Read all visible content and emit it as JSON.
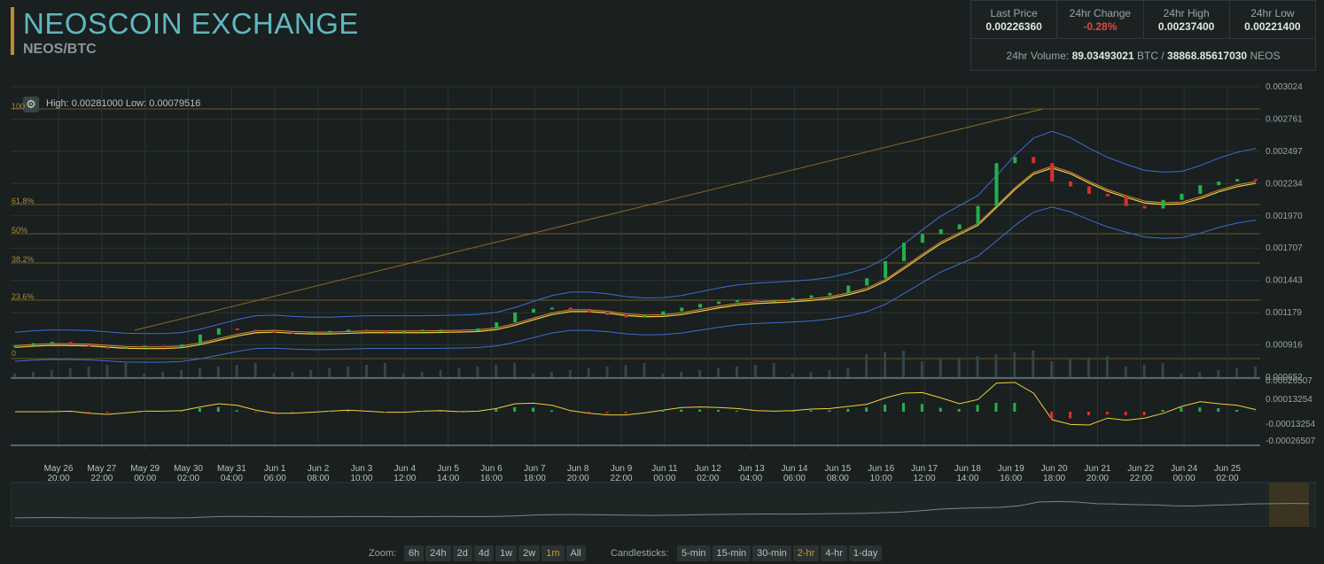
{
  "header": {
    "title": "NEOSCOIN EXCHANGE",
    "pair": "NEOS/BTC"
  },
  "stats": {
    "last_price_label": "Last Price",
    "last_price": "0.00226360",
    "change_label": "24hr Change",
    "change": "-0.28%",
    "high_label": "24hr High",
    "high": "0.00237400",
    "low_label": "24hr Low",
    "low": "0.00221400",
    "volume_label": "24hr Volume:",
    "volume_btc": "89.03493021",
    "volume_btc_unit": "BTC /",
    "volume_neos": "38868.85617030",
    "volume_neos_unit": "NEOS"
  },
  "chart": {
    "high_low_text": "High: 0.00281000   Low: 0.00079516",
    "fib_labels": [
      "100",
      "61.8%",
      "50%",
      "38.2%",
      "23.6%",
      "0"
    ],
    "colors": {
      "up": "#22b14c",
      "down": "#d9302c",
      "bands": "#3b6fd1",
      "ma": "#f0d23a",
      "ma2": "#d88a3a",
      "grid": "#2b3434"
    }
  },
  "chart_data": {
    "type": "line",
    "price_axis_ticks": [
      "0.003024",
      "0.002761",
      "0.002497",
      "0.002234",
      "0.001970",
      "0.001707",
      "0.001443",
      "0.001179",
      "0.000916",
      "0.000652"
    ],
    "macd_axis_ticks": [
      "0.00026507",
      "0.00013254",
      "-0.00013254",
      "-0.00026507"
    ],
    "x_labels": [
      [
        "May 26",
        "20:00"
      ],
      [
        "May 27",
        "22:00"
      ],
      [
        "May 29",
        "00:00"
      ],
      [
        "May 30",
        "02:00"
      ],
      [
        "May 31",
        "04:00"
      ],
      [
        "Jun 1",
        "06:00"
      ],
      [
        "Jun 2",
        "08:00"
      ],
      [
        "Jun 3",
        "10:00"
      ],
      [
        "Jun 4",
        "12:00"
      ],
      [
        "Jun 5",
        "14:00"
      ],
      [
        "Jun 6",
        "16:00"
      ],
      [
        "Jun 7",
        "18:00"
      ],
      [
        "Jun 8",
        "20:00"
      ],
      [
        "Jun 9",
        "22:00"
      ],
      [
        "Jun 11",
        "00:00"
      ],
      [
        "Jun 12",
        "02:00"
      ],
      [
        "Jun 13",
        "04:00"
      ],
      [
        "Jun 14",
        "06:00"
      ],
      [
        "Jun 15",
        "08:00"
      ],
      [
        "Jun 16",
        "10:00"
      ],
      [
        "Jun 17",
        "12:00"
      ],
      [
        "Jun 18",
        "14:00"
      ],
      [
        "Jun 19",
        "16:00"
      ],
      [
        "Jun 20",
        "18:00"
      ],
      [
        "Jun 21",
        "20:00"
      ],
      [
        "Jun 22",
        "22:00"
      ],
      [
        "Jun 24",
        "00:00"
      ],
      [
        "Jun 25",
        "02:00"
      ]
    ],
    "price_series": [
      0.00091,
      0.00093,
      0.00094,
      0.00092,
      0.0009,
      0.00089,
      0.0009,
      0.00091,
      0.0009,
      0.00092,
      0.001,
      0.00105,
      0.00104,
      0.00103,
      0.00102,
      0.00101,
      0.00102,
      0.00103,
      0.00104,
      0.00103,
      0.00102,
      0.00103,
      0.00104,
      0.00104,
      0.00103,
      0.00105,
      0.0011,
      0.00118,
      0.00121,
      0.00122,
      0.0012,
      0.00118,
      0.00116,
      0.00114,
      0.00116,
      0.00119,
      0.00122,
      0.00125,
      0.00127,
      0.00128,
      0.00127,
      0.00128,
      0.0013,
      0.00132,
      0.00134,
      0.0014,
      0.00146,
      0.0016,
      0.00175,
      0.00182,
      0.00186,
      0.0019,
      0.00205,
      0.0024,
      0.00245,
      0.0024,
      0.00225,
      0.00221,
      0.00215,
      0.00213,
      0.00205,
      0.00203,
      0.0021,
      0.00215,
      0.00222,
      0.00225,
      0.00227,
      0.00226
    ],
    "ylim": [
      0.000652,
      0.003024
    ]
  },
  "bottom": {
    "zoom_label": "Zoom:",
    "zoom_options": [
      "6h",
      "24h",
      "2d",
      "4d",
      "1w",
      "2w",
      "1m",
      "All"
    ],
    "zoom_active": "1m",
    "candle_label": "Candlesticks:",
    "candle_options": [
      "5-min",
      "15-min",
      "30-min",
      "2-hr",
      "4-hr",
      "1-day"
    ],
    "candle_active": "2-hr"
  }
}
